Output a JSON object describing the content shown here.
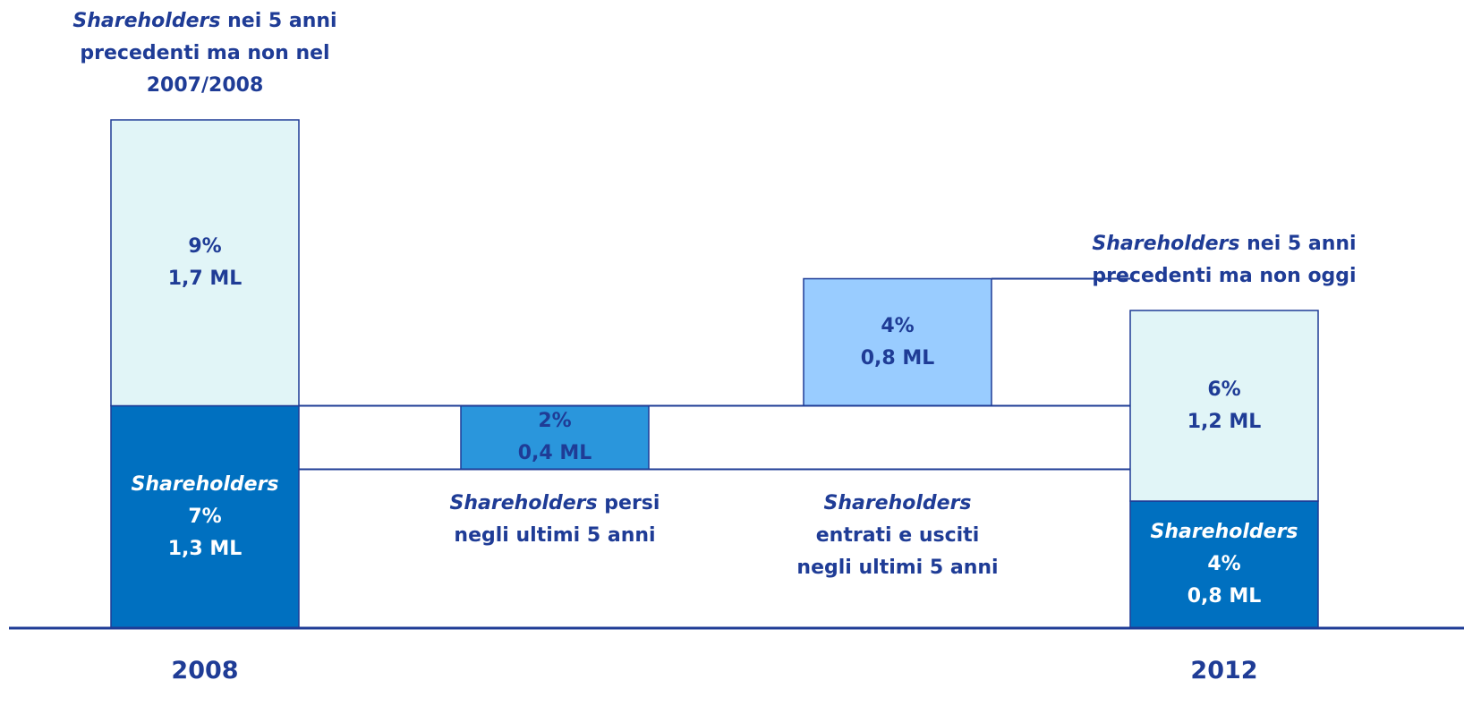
{
  "chart_data": {
    "type": "waterfall",
    "categories": [
      "2008",
      null,
      null,
      "2012"
    ],
    "bars": [
      {
        "kind": "total",
        "note": {
          "italic": "Shareholders",
          "text": "nei 5 anni precedenti ma non nel 2007/2008"
        },
        "segments": [
          {
            "name": "Shareholders",
            "value": 7,
            "value_label": "7%",
            "ml": "1,3 ML",
            "color": "#0070c0"
          },
          {
            "value": 9,
            "value_label": "9%",
            "ml": "1,7 ML",
            "color": "#e1f5f7"
          }
        ]
      },
      {
        "kind": "decrease",
        "value": 2,
        "value_label": "2%",
        "ml": "0,4 ML",
        "color": "#2a96dc",
        "label": {
          "italic": "Shareholders",
          "text": "persi negli ultimi 5 anni"
        }
      },
      {
        "kind": "increase",
        "value": 4,
        "value_label": "4%",
        "ml": "0,8 ML",
        "color": "#99ccff",
        "label": {
          "italic": "Shareholders",
          "text": "entrati e usciti negli ultimi 5 anni"
        }
      },
      {
        "kind": "total",
        "note": {
          "italic": "Shareholders",
          "text": "nei 5 anni precedenti ma non oggi"
        },
        "segments": [
          {
            "name": "Shareholders",
            "value": 4,
            "value_label": "4%",
            "ml": "0,8 ML",
            "color": "#0070c0"
          },
          {
            "value": 6,
            "value_label": "6%",
            "ml": "1,2 ML",
            "color": "#e1f5f7"
          }
        ]
      }
    ]
  }
}
